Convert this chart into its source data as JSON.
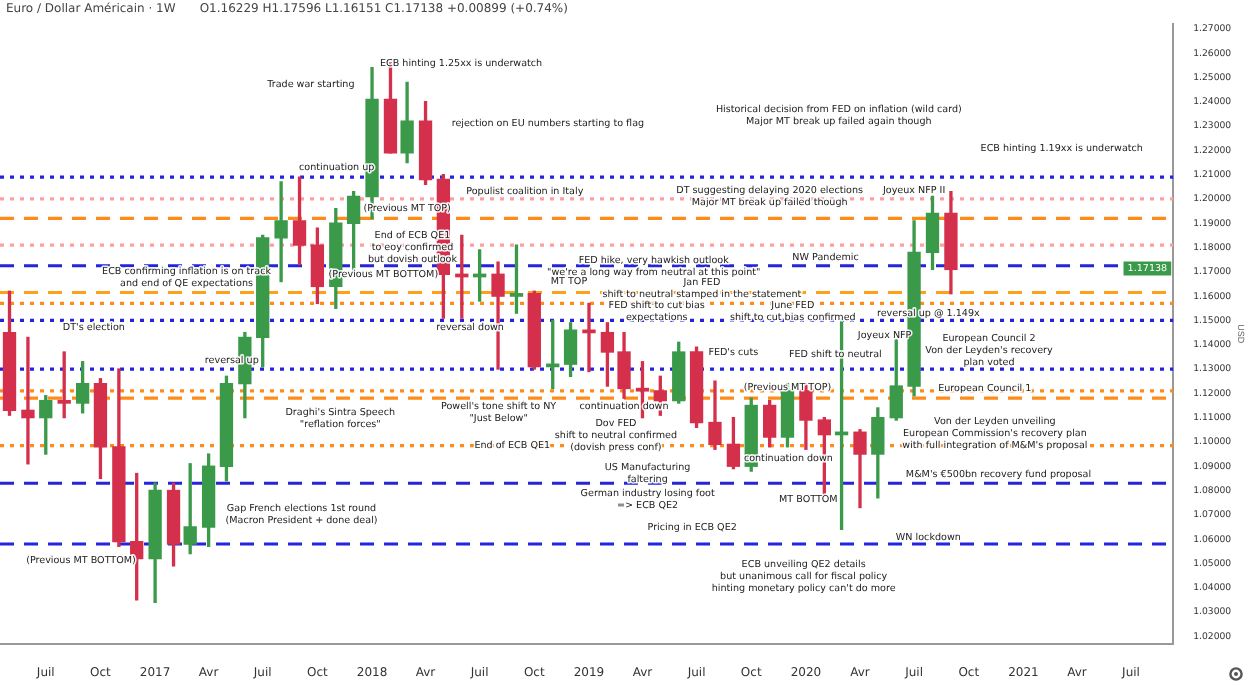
{
  "chart_data": {
    "type": "candlestick",
    "title": "Euro / Dollar Américain · 1W",
    "subtitle": "O1.16229 H1.17596 L1.16151 C1.17138 +0.00899 (+0.74%)",
    "ylabel": "USD",
    "x": [
      "2016-05",
      "2016-06",
      "2016-07",
      "2016-08",
      "2016-09",
      "2016-10",
      "2016-11",
      "2016-12",
      "2017-01",
      "2017-02",
      "2017-03",
      "2017-04",
      "2017-05",
      "2017-06",
      "2017-07",
      "2017-08",
      "2017-09",
      "2017-10",
      "2017-11",
      "2017-12",
      "2018-01",
      "2018-02",
      "2018-03",
      "2018-04",
      "2018-05",
      "2018-06",
      "2018-07",
      "2018-08",
      "2018-09",
      "2018-10",
      "2018-11",
      "2018-12",
      "2019-01",
      "2019-02",
      "2019-03",
      "2019-04",
      "2019-05",
      "2019-06",
      "2019-07",
      "2019-08",
      "2019-09",
      "2019-10",
      "2019-11",
      "2019-12",
      "2020-01",
      "2020-02",
      "2020-03",
      "2020-04",
      "2020-05",
      "2020-06",
      "2020-07",
      "2020-08",
      "2020-09"
    ],
    "ohlc": [
      [
        1.145,
        1.162,
        1.111,
        1.113
      ],
      [
        1.113,
        1.143,
        1.091,
        1.11
      ],
      [
        1.11,
        1.119,
        1.095,
        1.117
      ],
      [
        1.117,
        1.137,
        1.11,
        1.116
      ],
      [
        1.116,
        1.133,
        1.112,
        1.124
      ],
      [
        1.124,
        1.126,
        1.085,
        1.098
      ],
      [
        1.098,
        1.13,
        1.057,
        1.059
      ],
      [
        1.059,
        1.087,
        1.035,
        1.052
      ],
      [
        1.052,
        1.083,
        1.034,
        1.08
      ],
      [
        1.08,
        1.083,
        1.049,
        1.058
      ],
      [
        1.058,
        1.091,
        1.054,
        1.065
      ],
      [
        1.065,
        1.095,
        1.057,
        1.09
      ],
      [
        1.09,
        1.127,
        1.084,
        1.124
      ],
      [
        1.124,
        1.145,
        1.11,
        1.143
      ],
      [
        1.143,
        1.185,
        1.131,
        1.184
      ],
      [
        1.184,
        1.207,
        1.166,
        1.191
      ],
      [
        1.191,
        1.209,
        1.173,
        1.181
      ],
      [
        1.181,
        1.188,
        1.157,
        1.164
      ],
      [
        1.164,
        1.196,
        1.155,
        1.19
      ],
      [
        1.19,
        1.203,
        1.17,
        1.201
      ],
      [
        1.201,
        1.254,
        1.192,
        1.241
      ],
      [
        1.241,
        1.256,
        1.219,
        1.219
      ],
      [
        1.219,
        1.248,
        1.215,
        1.232
      ],
      [
        1.232,
        1.24,
        1.206,
        1.208
      ],
      [
        1.208,
        1.21,
        1.151,
        1.169
      ],
      [
        1.169,
        1.185,
        1.151,
        1.168
      ],
      [
        1.168,
        1.179,
        1.158,
        1.169
      ],
      [
        1.169,
        1.174,
        1.13,
        1.16
      ],
      [
        1.16,
        1.181,
        1.153,
        1.161
      ],
      [
        1.161,
        1.162,
        1.13,
        1.131
      ],
      [
        1.131,
        1.15,
        1.122,
        1.132
      ],
      [
        1.132,
        1.149,
        1.127,
        1.146
      ],
      [
        1.146,
        1.157,
        1.129,
        1.145
      ],
      [
        1.145,
        1.149,
        1.123,
        1.137
      ],
      [
        1.137,
        1.145,
        1.118,
        1.122
      ],
      [
        1.122,
        1.133,
        1.11,
        1.121
      ],
      [
        1.121,
        1.127,
        1.111,
        1.117
      ],
      [
        1.117,
        1.141,
        1.116,
        1.137
      ],
      [
        1.137,
        1.139,
        1.106,
        1.108
      ],
      [
        1.108,
        1.125,
        1.097,
        1.099
      ],
      [
        1.099,
        1.11,
        1.089,
        1.09
      ],
      [
        1.09,
        1.118,
        1.088,
        1.115
      ],
      [
        1.115,
        1.117,
        1.098,
        1.102
      ],
      [
        1.102,
        1.124,
        1.098,
        1.121
      ],
      [
        1.121,
        1.124,
        1.097,
        1.109
      ],
      [
        1.109,
        1.11,
        1.078,
        1.103
      ],
      [
        1.103,
        1.15,
        1.064,
        1.104
      ],
      [
        1.104,
        1.105,
        1.073,
        1.095
      ],
      [
        1.095,
        1.114,
        1.077,
        1.11
      ],
      [
        1.11,
        1.142,
        1.109,
        1.123
      ],
      [
        1.123,
        1.191,
        1.119,
        1.178
      ],
      [
        1.178,
        1.201,
        1.171,
        1.194
      ],
      [
        1.194,
        1.203,
        1.161,
        1.171
      ]
    ],
    "colors": [
      "#d4304b",
      "#d4304b",
      "#3a9a4a",
      "#d4304b",
      "#3a9a4a",
      "#d4304b",
      "#d4304b",
      "#d4304b",
      "#3a9a4a",
      "#d4304b",
      "#3a9a4a",
      "#3a9a4a",
      "#3a9a4a",
      "#3a9a4a",
      "#3a9a4a",
      "#3a9a4a",
      "#d4304b",
      "#d4304b",
      "#3a9a4a",
      "#3a9a4a",
      "#3a9a4a",
      "#d4304b",
      "#3a9a4a",
      "#d4304b",
      "#d4304b",
      "#d4304b",
      "#3a9a4a",
      "#d4304b",
      "#3a9a4a",
      "#d4304b",
      "#3a9a4a",
      "#3a9a4a",
      "#d4304b",
      "#d4304b",
      "#d4304b",
      "#d4304b",
      "#d4304b",
      "#3a9a4a",
      "#d4304b",
      "#d4304b",
      "#d4304b",
      "#3a9a4a",
      "#d4304b",
      "#3a9a4a",
      "#d4304b",
      "#d4304b",
      "#3a9a4a",
      "#d4304b",
      "#3a9a4a",
      "#3a9a4a",
      "#3a9a4a",
      "#3a9a4a",
      "#d4304b"
    ],
    "xlim": [
      "2016-04-15",
      "2021-09-10"
    ],
    "xticks": [
      {
        "value": "2016-07",
        "label": "Juil"
      },
      {
        "value": "2016-10",
        "label": "Oct"
      },
      {
        "value": "2017-01",
        "label": "2017"
      },
      {
        "value": "2017-04",
        "label": "Avr"
      },
      {
        "value": "2017-07",
        "label": "Juil"
      },
      {
        "value": "2017-10",
        "label": "Oct"
      },
      {
        "value": "2018-01",
        "label": "2018"
      },
      {
        "value": "2018-04",
        "label": "Avr"
      },
      {
        "value": "2018-07",
        "label": "Juil"
      },
      {
        "value": "2018-10",
        "label": "Oct"
      },
      {
        "value": "2019-01",
        "label": "2019"
      },
      {
        "value": "2019-04",
        "label": "Avr"
      },
      {
        "value": "2019-07",
        "label": "Juil"
      },
      {
        "value": "2019-10",
        "label": "Oct"
      },
      {
        "value": "2020-01",
        "label": "2020"
      },
      {
        "value": "2020-04",
        "label": "Avr"
      },
      {
        "value": "2020-07",
        "label": "Juil"
      },
      {
        "value": "2020-10",
        "label": "Oct"
      },
      {
        "value": "2021-01",
        "label": "2021"
      },
      {
        "value": "2021-04",
        "label": "Avr"
      },
      {
        "value": "2021-07",
        "label": "Juil"
      }
    ],
    "ylim": [
      1.017,
      1.272
    ],
    "yticks": [
      {
        "value": 1.02,
        "label": "1.02000"
      },
      {
        "value": 1.03,
        "label": "1.03000"
      },
      {
        "value": 1.04,
        "label": "1.04000"
      },
      {
        "value": 1.05,
        "label": "1.05000"
      },
      {
        "value": 1.06,
        "label": "1.06000"
      },
      {
        "value": 1.07,
        "label": "1.07000"
      },
      {
        "value": 1.08,
        "label": "1.08000"
      },
      {
        "value": 1.09,
        "label": "1.09000"
      },
      {
        "value": 1.1,
        "label": "1.10000"
      },
      {
        "value": 1.11,
        "label": "1.11000"
      },
      {
        "value": 1.12,
        "label": "1.12000"
      },
      {
        "value": 1.13,
        "label": "1.13000"
      },
      {
        "value": 1.14,
        "label": "1.14000"
      },
      {
        "value": 1.15,
        "label": "1.15000"
      },
      {
        "value": 1.16,
        "label": "1.16000"
      },
      {
        "value": 1.17,
        "label": "1.17000"
      },
      {
        "value": 1.18,
        "label": "1.18000"
      },
      {
        "value": 1.19,
        "label": "1.19000"
      },
      {
        "value": 1.2,
        "label": "1.20000"
      },
      {
        "value": 1.21,
        "label": "1.21000"
      },
      {
        "value": 1.22,
        "label": "1.22000"
      },
      {
        "value": 1.23,
        "label": "1.23000"
      },
      {
        "value": 1.24,
        "label": "1.24000"
      },
      {
        "value": 1.25,
        "label": "1.25000"
      },
      {
        "value": 1.26,
        "label": "1.26000"
      },
      {
        "value": 1.27,
        "label": "1.27000"
      }
    ],
    "ref_lines": [
      {
        "axis": "y",
        "value": 1.209,
        "color": "#2323e0",
        "line_style": "dotted"
      },
      {
        "axis": "y",
        "value": 1.2,
        "color": "#ffa0a0",
        "line_style": "dotted"
      },
      {
        "axis": "y",
        "value": 1.192,
        "color": "#ff8c1a",
        "line_style": "dashed"
      },
      {
        "axis": "y",
        "value": 1.181,
        "color": "#ffa0a0",
        "line_style": "dotted"
      },
      {
        "axis": "y",
        "value": 1.1725,
        "color": "#2323e0",
        "line_style": "dashed"
      },
      {
        "axis": "y",
        "value": 1.1615,
        "color": "#ff9f1a",
        "line_style": "dashed"
      },
      {
        "axis": "y",
        "value": 1.157,
        "color": "#ff8c1a",
        "line_style": "dotted"
      },
      {
        "axis": "y",
        "value": 1.15,
        "color": "#2323e0",
        "line_style": "dotted"
      },
      {
        "axis": "y",
        "value": 1.13,
        "color": "#2323e0",
        "line_style": "dotted"
      },
      {
        "axis": "y",
        "value": 1.121,
        "color": "#ff8c1a",
        "line_style": "dotted"
      },
      {
        "axis": "y",
        "value": 1.118,
        "color": "#ff8c1a",
        "line_style": "dashed"
      },
      {
        "axis": "y",
        "value": 1.0985,
        "color": "#ff8c1a",
        "line_style": "dotted"
      },
      {
        "axis": "y",
        "value": 1.083,
        "color": "#2323e0",
        "line_style": "dashed"
      },
      {
        "axis": "y",
        "value": 1.058,
        "color": "#2323e0",
        "line_style": "dashed"
      }
    ],
    "annotations": [
      "ECB hinting 1.25xx is underwatch",
      "Trade war starting",
      "rejection on EU numbers starting to flag",
      {
        "text": "Populist coalition in Italy",
        "x": "2018-09-15",
        "y": 1.203
      },
      {
        "text": "End of ECB QE1\nto eoy confirmed\nbut dovish outlook",
        "x": "2018-03-10",
        "y": 1.18
      },
      "ECB confirming inflation is on track\nand end of QE expectations",
      {
        "text": "DT's election",
        "x": "2016-09-20",
        "y": 1.147
      },
      "Draghi's Sintra Speech\n\"reflation forces\"",
      "Gap French elections 1st round\n(Macron President + done deal)",
      {
        "text": "FED hike, very hawkish outlook\n\"we're a long way from neutral at this point\"",
        "x": "2019-04-20",
        "y": 1.172
      },
      {
        "text": "Jan FED\nshift to neutral stamped in the statement",
        "x": "2019-07-10",
        "y": 1.163
      },
      {
        "text": "FED shift to cut bias\nexpectations",
        "x": "2019-04-25",
        "y": 1.1535
      },
      {
        "text": "June FED\nshift to cut bias confirmed",
        "x": "2019-12-10",
        "y": 1.1535
      },
      "Historical decision from FED on inflation (wild card)\nMajor MT break up failed again though",
      {
        "text": "DT suggesting delaying 2020 elections\nMajor MT break up failed though",
        "x": "2019-11-01",
        "y": 1.201
      },
      {
        "text": "Joyeux NFP II",
        "x": "2020-07-01",
        "y": 1.2035
      },
      "ECB hinting 1.19xx is underwatch",
      {
        "text": "NW Pandemic",
        "x": "2020-02-03",
        "y": 1.176
      },
      "Joyeux NFP",
      "European Council 2\nVon der Leyden's recovery\nplan voted",
      {
        "text": "European Council 1",
        "x": "2020-10-28",
        "y": 1.122
      },
      "Von der Leyden unveiling\nEuropean Commission's recovery plan\nwith full integration of M&M's proposal",
      {
        "text": "M&M's €500bn recovery fund proposal",
        "x": "2020-11-20",
        "y": 1.0867
      },
      {
        "text": "WN lockdown",
        "x": "2020-07-25",
        "y": 1.0605
      },
      "ECB unveiling QE2 details\nbut unanimous call for fiscal policy\nhinting monetary policy can't do more",
      "Pricing in ECB QE2",
      "German industry losing foot\n=> ECB QE2",
      "US Manufacturing\nfaltering",
      "FED's cuts",
      "FED shift to neutral",
      "Powell's tone shift to NY\n\"Just Below\"",
      {
        "text": "End of ECB QE1",
        "x": "2018-08-25",
        "y": 1.0985
      },
      "Dov FED\nshift to neutral confirmed\n(dovish press conf)",
      "continuation up",
      {
        "text": "(Previous MT TOP)",
        "x": "2018-03-01",
        "y": 1.196
      },
      {
        "text": "(Previous MT BOTTOM)",
        "x": "2018-01-20",
        "y": 1.169
      },
      "MT TOP",
      {
        "text": "reversal down",
        "x": "2018-06-15",
        "y": 1.147
      },
      {
        "text": "reversal up",
        "x": "2017-05-10",
        "y": 1.1335
      },
      {
        "text": "reversal up @ 1.149x",
        "x": "2020-07-25",
        "y": 1.153
      },
      {
        "text": "(Previous MT TOP)",
        "x": "2019-12-01",
        "y": 1.1225
      },
      {
        "text": "continuation down",
        "x": "2019-03-01",
        "y": 1.1145
      },
      "continuation down",
      "MT BOTTOM",
      "(Previous MT BOTTOM)",
      {
        "text": "1.17138",
        "x": "2021-09-10",
        "y": 1.17138
      }
    ]
  }
}
